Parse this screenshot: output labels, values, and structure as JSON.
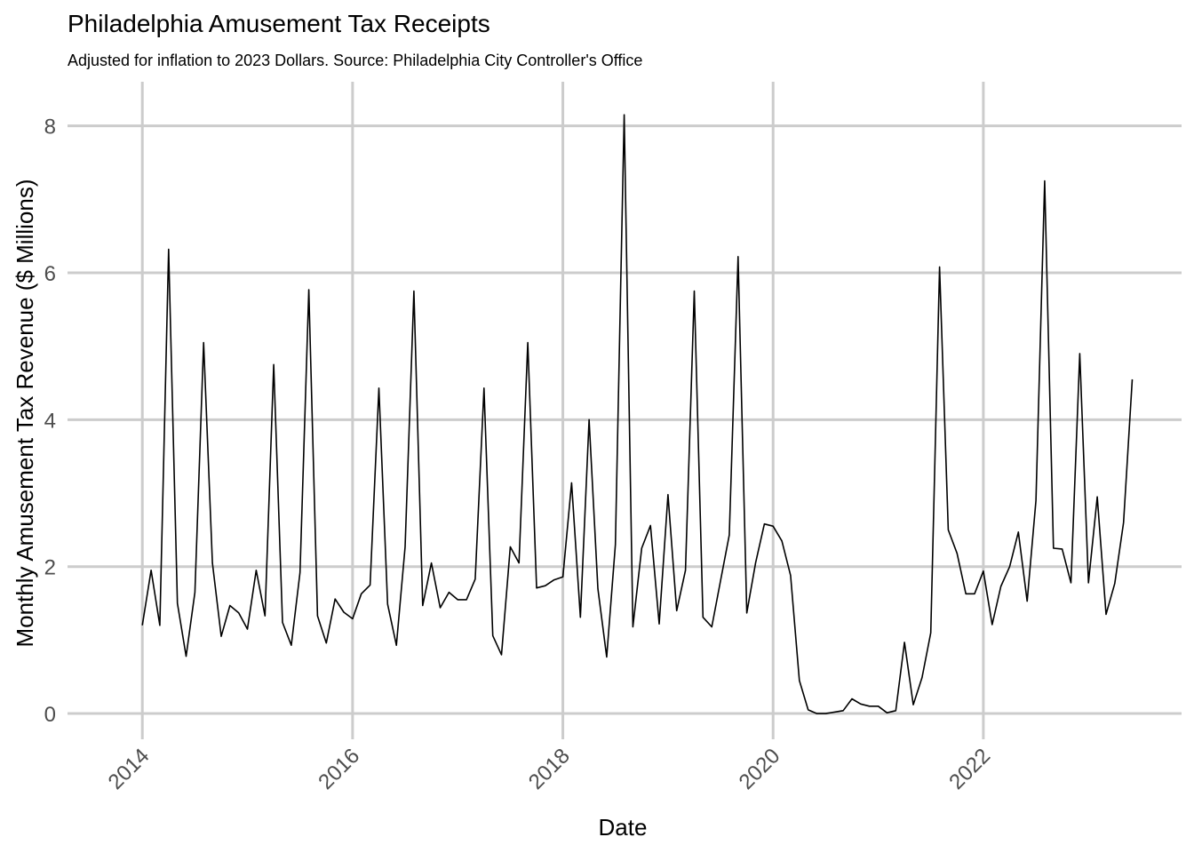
{
  "chart_data": {
    "type": "line",
    "title": "Philadelphia Amusement Tax Receipts",
    "subtitle": "Adjusted for inflation to 2023 Dollars. Source: Philadelphia City Controller's Office",
    "xlabel": "Date",
    "ylabel": "Monthly Amusement Tax Revenue ($ Millions)",
    "xlim": [
      "2013-04-15",
      "2023-11-20"
    ],
    "ylim": [
      -0.35,
      8.6
    ],
    "x_ticks": [
      "2014",
      "2016",
      "2018",
      "2020",
      "2022"
    ],
    "y_ticks": [
      0,
      2,
      4,
      6,
      8
    ],
    "grid": true,
    "line_color": "#000000",
    "grid_color": "#cccccc",
    "series": [
      {
        "x": [
          "2014-01",
          "2014-02",
          "2014-03",
          "2014-04",
          "2014-05",
          "2014-06",
          "2014-07",
          "2014-08",
          "2014-09",
          "2014-10",
          "2014-11",
          "2014-12",
          "2015-01",
          "2015-02",
          "2015-03",
          "2015-04",
          "2015-05",
          "2015-06",
          "2015-07",
          "2015-08",
          "2015-09",
          "2015-10",
          "2015-11",
          "2015-12",
          "2016-01",
          "2016-02",
          "2016-03",
          "2016-04",
          "2016-05",
          "2016-06",
          "2016-07",
          "2016-08",
          "2016-09",
          "2016-10",
          "2016-11",
          "2016-12",
          "2017-01",
          "2017-02",
          "2017-03",
          "2017-04",
          "2017-05",
          "2017-06",
          "2017-07",
          "2017-08",
          "2017-09",
          "2017-10",
          "2017-11",
          "2017-12",
          "2018-01",
          "2018-02",
          "2018-03",
          "2018-04",
          "2018-05",
          "2018-06",
          "2018-07",
          "2018-08",
          "2018-09",
          "2018-10",
          "2018-11",
          "2018-12",
          "2019-01",
          "2019-02",
          "2019-03",
          "2019-04",
          "2019-05",
          "2019-06",
          "2019-07",
          "2019-08",
          "2019-09",
          "2019-10",
          "2019-11",
          "2019-12",
          "2020-01",
          "2020-02",
          "2020-03",
          "2020-04",
          "2020-05",
          "2020-06",
          "2020-07",
          "2020-08",
          "2020-09",
          "2020-10",
          "2020-11",
          "2020-12",
          "2021-01",
          "2021-02",
          "2021-03",
          "2021-04",
          "2021-05",
          "2021-06",
          "2021-07",
          "2021-08",
          "2021-09",
          "2021-10",
          "2021-11",
          "2021-12",
          "2022-01",
          "2022-02",
          "2022-03",
          "2022-04",
          "2022-05",
          "2022-06",
          "2022-07",
          "2022-08",
          "2022-09",
          "2022-10",
          "2022-11",
          "2022-12",
          "2023-01",
          "2023-02",
          "2023-03",
          "2023-04",
          "2023-05",
          "2023-06"
        ],
        "values": [
          1.2,
          1.95,
          1.2,
          6.32,
          1.5,
          0.78,
          1.65,
          5.05,
          2.05,
          1.05,
          1.47,
          1.37,
          1.15,
          1.95,
          1.33,
          4.75,
          1.24,
          0.93,
          1.92,
          5.77,
          1.33,
          0.96,
          1.56,
          1.38,
          1.29,
          1.63,
          1.75,
          4.43,
          1.49,
          0.93,
          2.27,
          5.75,
          1.47,
          2.05,
          1.44,
          1.65,
          1.55,
          1.55,
          1.83,
          4.43,
          1.06,
          0.8,
          2.27,
          2.05,
          5.05,
          1.71,
          1.74,
          1.82,
          1.86,
          3.14,
          1.31,
          4.0,
          1.7,
          0.77,
          2.3,
          8.15,
          1.18,
          2.25,
          2.56,
          1.22,
          2.98,
          1.4,
          1.95,
          5.75,
          1.31,
          1.18,
          1.81,
          2.43,
          6.22,
          1.37,
          2.05,
          2.58,
          2.55,
          2.35,
          1.88,
          0.45,
          0.05,
          0.0,
          0.0,
          0.02,
          0.04,
          0.2,
          0.13,
          0.1,
          0.1,
          0.01,
          0.04,
          0.97,
          0.12,
          0.49,
          1.1,
          6.08,
          2.5,
          2.18,
          1.63,
          1.63,
          1.94,
          1.21,
          1.73,
          2.0,
          2.47,
          1.53,
          2.9,
          7.25,
          2.25,
          2.24,
          1.78,
          4.9,
          1.78,
          2.95,
          1.35,
          1.77,
          2.6,
          4.55
        ]
      }
    ]
  }
}
